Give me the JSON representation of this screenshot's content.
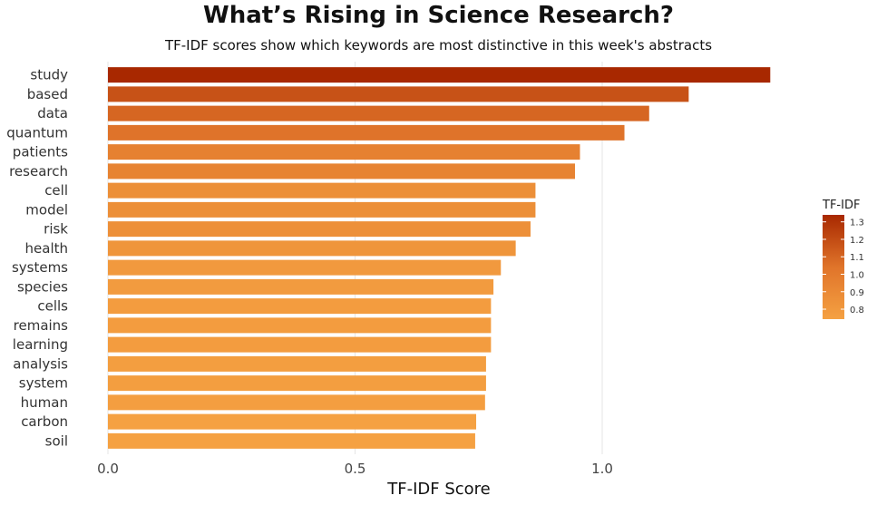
{
  "chart_data": {
    "type": "bar",
    "orientation": "horizontal",
    "title": "What’s Rising in Science Research?",
    "subtitle": "TF-IDF scores show which keywords are most distinctive in this week's abstracts",
    "xlabel": "TF-IDF Score",
    "ylabel": "",
    "xlim": [
      0,
      1.35
    ],
    "xticks": [
      "0.0",
      "0.5",
      "1.0"
    ],
    "xtick_values": [
      0,
      0.5,
      1.0
    ],
    "grid": "vertical major lines",
    "categories": [
      "study",
      "based",
      "data",
      "quantum",
      "patients",
      "research",
      "cell",
      "model",
      "risk",
      "health",
      "systems",
      "species",
      "cells",
      "remains",
      "learning",
      "analysis",
      "system",
      "human",
      "carbon",
      "soil"
    ],
    "values": [
      1.34,
      1.175,
      1.095,
      1.045,
      0.955,
      0.945,
      0.865,
      0.865,
      0.855,
      0.825,
      0.795,
      0.78,
      0.775,
      0.775,
      0.775,
      0.765,
      0.765,
      0.763,
      0.745,
      0.743
    ],
    "legend": {
      "title": "TF-IDF",
      "placement": "right",
      "ticks": [
        "1.3",
        "1.2",
        "1.1",
        "1.0",
        "0.9",
        "0.8"
      ],
      "tick_values": [
        1.3,
        1.2,
        1.1,
        1.0,
        0.9,
        0.8
      ],
      "range": [
        0.743,
        1.34
      ]
    },
    "colors": {
      "low": "#f5a142",
      "high": "#a82800"
    }
  }
}
